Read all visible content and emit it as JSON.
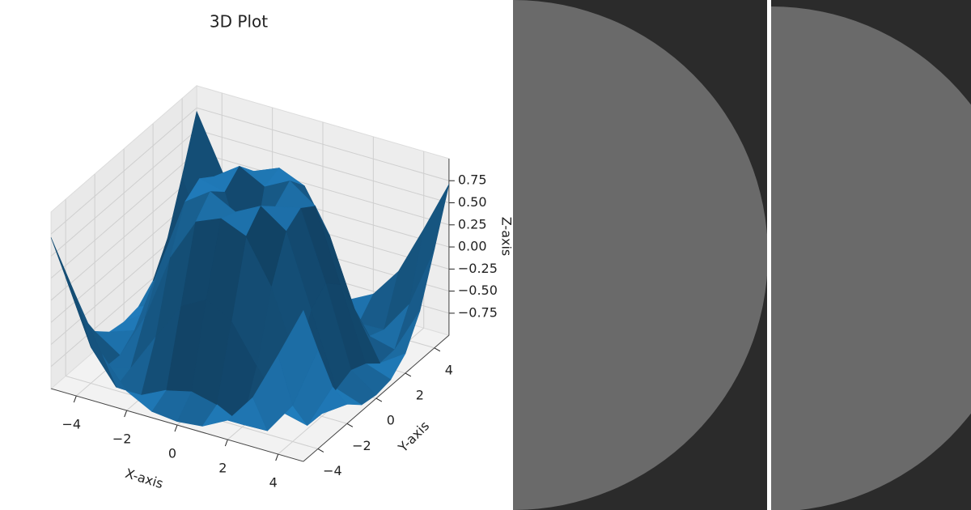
{
  "chart_data": {
    "type": "surface3d",
    "title": "3D Plot",
    "x_label": "X-axis",
    "y_label": "Y-axis",
    "z_label": "Z-axis",
    "color": "#1f77b4",
    "x": [
      -5,
      -4,
      -3,
      -2,
      -1,
      0,
      1,
      2,
      3,
      4,
      5
    ],
    "y": [
      -5,
      -4,
      -3,
      -2,
      -1,
      0,
      1,
      2,
      3,
      4,
      5
    ],
    "z": [
      [
        0.71,
        0.12,
        -0.44,
        -0.78,
        -0.93,
        -0.96,
        -0.93,
        -0.78,
        -0.44,
        0.12,
        0.71
      ],
      [
        0.12,
        -0.59,
        -0.96,
        -0.97,
        -0.83,
        -0.76,
        -0.83,
        -0.97,
        -0.96,
        -0.59,
        0.12
      ],
      [
        -0.44,
        -0.96,
        -0.89,
        -0.45,
        -0.02,
        0.14,
        -0.02,
        -0.45,
        -0.89,
        -0.96,
        -0.44
      ],
      [
        -0.78,
        -0.97,
        -0.45,
        0.31,
        0.79,
        0.91,
        0.79,
        0.31,
        -0.45,
        -0.97,
        -0.78
      ],
      [
        -0.93,
        -0.83,
        -0.02,
        0.79,
        0.99,
        0.84,
        0.99,
        0.79,
        -0.02,
        -0.83,
        -0.93
      ],
      [
        -0.96,
        -0.76,
        0.14,
        0.91,
        0.84,
        0,
        0.84,
        0.91,
        0.14,
        -0.76,
        -0.96
      ],
      [
        -0.93,
        -0.83,
        -0.02,
        0.79,
        0.99,
        0.84,
        0.99,
        0.79,
        -0.02,
        -0.83,
        -0.93
      ],
      [
        -0.78,
        -0.97,
        -0.45,
        0.31,
        0.79,
        0.91,
        0.79,
        0.31,
        -0.45,
        -0.97,
        -0.78
      ],
      [
        -0.44,
        -0.96,
        -0.89,
        -0.45,
        -0.02,
        0.14,
        -0.02,
        -0.45,
        -0.89,
        -0.96,
        -0.44
      ],
      [
        0.12,
        -0.59,
        -0.96,
        -0.97,
        -0.83,
        -0.76,
        -0.83,
        -0.97,
        -0.96,
        -0.59,
        0.12
      ],
      [
        0.71,
        0.12,
        -0.44,
        -0.78,
        -0.93,
        -0.96,
        -0.93,
        -0.78,
        -0.44,
        0.12,
        0.71
      ]
    ],
    "xlim": [
      -5,
      5
    ],
    "ylim": [
      -5,
      5
    ],
    "zlim": [
      -1,
      1
    ],
    "xticks": [
      {
        "value": -4,
        "label": "−4"
      },
      {
        "value": -2,
        "label": "−2"
      },
      0,
      2,
      4
    ],
    "yticks": [
      {
        "value": -4,
        "label": "−4"
      },
      {
        "value": -2,
        "label": "−2"
      },
      0,
      2,
      4
    ],
    "zticks": [
      {
        "value": -0.75,
        "label": "−0.75"
      },
      {
        "value": -0.5,
        "label": "−0.50"
      },
      {
        "value": -0.25,
        "label": "−0.25"
      },
      {
        "value": 0,
        "label": "0.00"
      },
      0.25,
      {
        "value": 0.5,
        "label": "0.50"
      },
      0.75
    ],
    "grid": true
  }
}
